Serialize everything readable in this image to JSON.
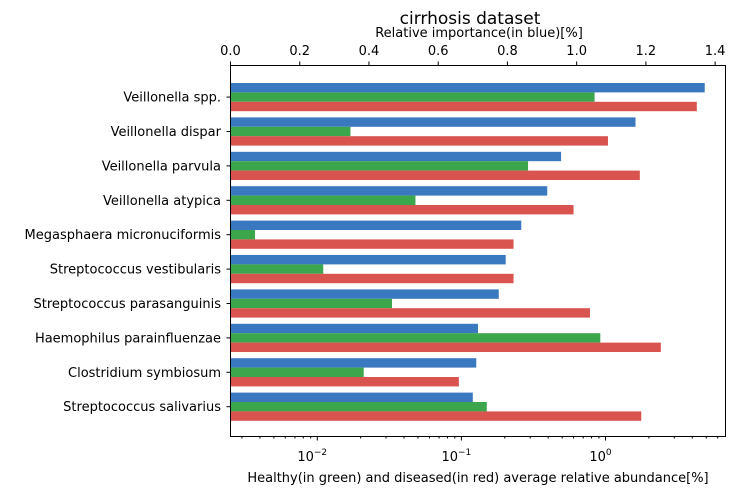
{
  "chart_data": {
    "type": "bar",
    "title": "cirrhosis dataset",
    "top_axis": {
      "label": "Relative importance(in blue)[%]",
      "scale": "linear",
      "lim": [
        0,
        1.43
      ],
      "ticks": [
        0,
        0.2,
        0.4,
        0.6,
        0.8,
        1.0,
        1.2,
        1.4
      ],
      "tick_labels": [
        "0.0",
        "0.2",
        "0.4",
        "0.6",
        "0.8",
        "1.0",
        "1.2",
        "1.4"
      ]
    },
    "bottom_axis": {
      "label": "Healthy(in green) and diseased(in red) average relative abundance[%]",
      "scale": "log",
      "lim": [
        0.0025,
        6.8
      ],
      "major_ticks": [
        0.01,
        0.1,
        1
      ],
      "major_tick_mantissa": [
        "10",
        "10",
        "10"
      ],
      "major_tick_exponent": [
        "−2",
        "−1",
        "0"
      ]
    },
    "categories": [
      "Veillonella spp.",
      "Veillonella dispar",
      "Veillonella parvula",
      "Veillonella atypica",
      "Megasphaera micronuciformis",
      "Streptococcus vestibularis",
      "Streptococcus parasanguinis",
      "Haemophilus parainfluenzae",
      "Clostridium symbiosum",
      "Streptococcus salivarius"
    ],
    "series": [
      {
        "role": "relative importance",
        "axis": "top",
        "color": "#3a78bf",
        "values": [
          1.37,
          1.17,
          0.955,
          0.915,
          0.84,
          0.795,
          0.775,
          0.715,
          0.71,
          0.7
        ]
      },
      {
        "role": "healthy",
        "axis": "bottom",
        "color": "#3ca64c",
        "values": [
          0.84,
          0.017,
          0.29,
          0.048,
          0.0037,
          0.011,
          0.033,
          0.92,
          0.021,
          0.15
        ]
      },
      {
        "role": "diseased",
        "axis": "bottom",
        "color": "#d9534f",
        "values": [
          4.3,
          1.04,
          1.73,
          0.6,
          0.23,
          0.23,
          0.78,
          2.42,
          0.096,
          1.77
        ]
      }
    ],
    "grid": false,
    "legend": "none"
  }
}
